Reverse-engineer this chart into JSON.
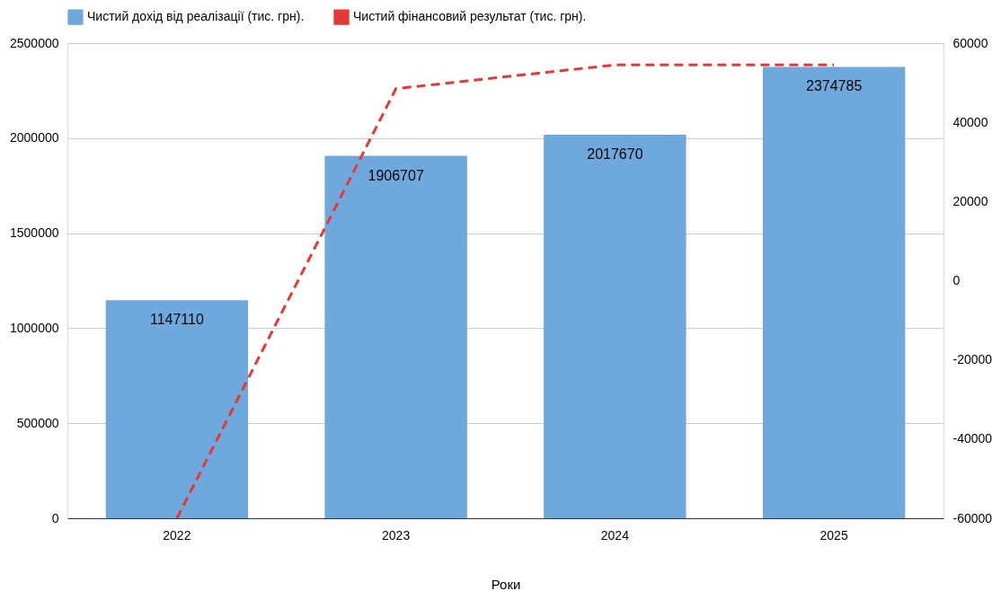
{
  "chart_data": {
    "type": "bar",
    "categories": [
      "2022",
      "2023",
      "2024",
      "2025"
    ],
    "xlabel": "Роки",
    "ylim": [
      0,
      2500000
    ],
    "yticks": [
      0,
      500000,
      1000000,
      1500000,
      2000000,
      2500000
    ],
    "y2lim": [
      -60000,
      60000
    ],
    "y2ticks": [
      -60000,
      -40000,
      -20000,
      0,
      20000,
      40000,
      60000
    ],
    "grid": "y",
    "legend": "top",
    "series": [
      {
        "name": "Чистий дохід від реалізації (тис. грн).",
        "color": "#6fa8dc",
        "values": [
          1147110,
          1906707,
          2017670,
          2374785
        ],
        "value_labels": [
          "1147110",
          "1906707",
          "2017670",
          "2374785"
        ]
      },
      {
        "name": "Чистий фінансовий результат (тис. грн).",
        "type": "line",
        "axis": "y2",
        "color": "#e53935",
        "line_style": "dashed",
        "marker": "none",
        "values": [
          -60000,
          48500,
          54500,
          54500
        ]
      }
    ]
  }
}
